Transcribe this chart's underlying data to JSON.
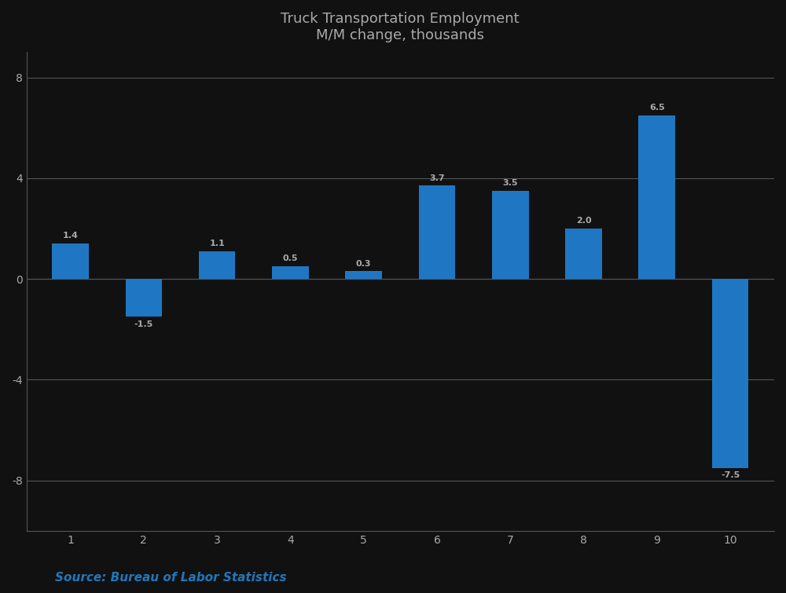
{
  "title_line1": "Truck Transportation Employment",
  "title_line2": "M/M change, thousands",
  "categories": [
    "1",
    "2",
    "3",
    "4",
    "5",
    "6",
    "7",
    "8",
    "9",
    "10"
  ],
  "values": [
    1.4,
    -1.5,
    1.1,
    0.5,
    0.3,
    3.7,
    3.5,
    2.0,
    6.5,
    -7.5
  ],
  "bar_labels": [
    "1.4",
    "-1.5",
    "1.1",
    "0.5",
    "0.3",
    "3.7",
    "3.5",
    "2.0",
    "6.5",
    "-7.5"
  ],
  "bar_color": "#1f77c4",
  "ylim": [
    -10,
    9
  ],
  "yticks": [
    -8,
    -4,
    0,
    4,
    8
  ],
  "background_color": "#111111",
  "plot_bg_color": "#111111",
  "text_color": "#aaaaaa",
  "grid_color": "#555555",
  "source_text": "Source: Bureau of Labor Statistics",
  "title_fontsize": 13,
  "label_fontsize": 8,
  "axis_fontsize": 10,
  "source_fontsize": 11,
  "bar_width": 0.5
}
